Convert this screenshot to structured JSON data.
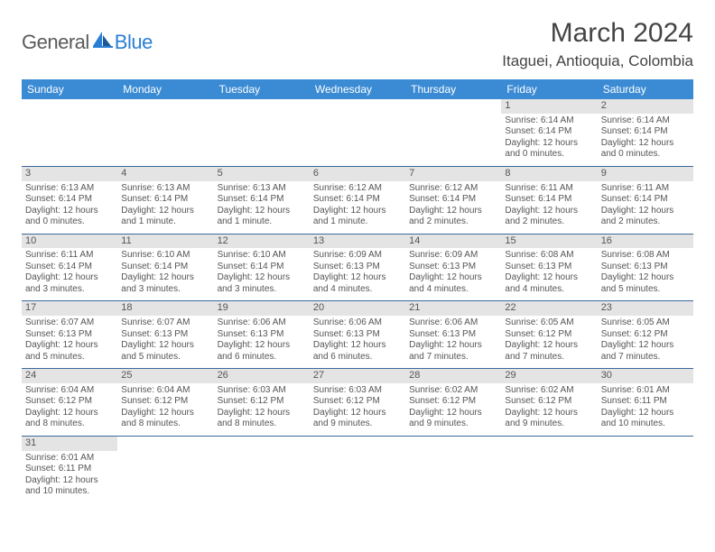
{
  "logo": {
    "part1": "General",
    "part2": "Blue"
  },
  "title": "March 2024",
  "location": "Itaguei, Antioquia, Colombia",
  "headerBg": "#3b8bd4",
  "dayNames": [
    "Sunday",
    "Monday",
    "Tuesday",
    "Wednesday",
    "Thursday",
    "Friday",
    "Saturday"
  ],
  "weeks": [
    [
      null,
      null,
      null,
      null,
      null,
      {
        "n": "1",
        "sr": "6:14 AM",
        "ss": "6:14 PM",
        "dl": "12 hours and 0 minutes."
      },
      {
        "n": "2",
        "sr": "6:14 AM",
        "ss": "6:14 PM",
        "dl": "12 hours and 0 minutes."
      }
    ],
    [
      {
        "n": "3",
        "sr": "6:13 AM",
        "ss": "6:14 PM",
        "dl": "12 hours and 0 minutes."
      },
      {
        "n": "4",
        "sr": "6:13 AM",
        "ss": "6:14 PM",
        "dl": "12 hours and 1 minute."
      },
      {
        "n": "5",
        "sr": "6:13 AM",
        "ss": "6:14 PM",
        "dl": "12 hours and 1 minute."
      },
      {
        "n": "6",
        "sr": "6:12 AM",
        "ss": "6:14 PM",
        "dl": "12 hours and 1 minute."
      },
      {
        "n": "7",
        "sr": "6:12 AM",
        "ss": "6:14 PM",
        "dl": "12 hours and 2 minutes."
      },
      {
        "n": "8",
        "sr": "6:11 AM",
        "ss": "6:14 PM",
        "dl": "12 hours and 2 minutes."
      },
      {
        "n": "9",
        "sr": "6:11 AM",
        "ss": "6:14 PM",
        "dl": "12 hours and 2 minutes."
      }
    ],
    [
      {
        "n": "10",
        "sr": "6:11 AM",
        "ss": "6:14 PM",
        "dl": "12 hours and 3 minutes."
      },
      {
        "n": "11",
        "sr": "6:10 AM",
        "ss": "6:14 PM",
        "dl": "12 hours and 3 minutes."
      },
      {
        "n": "12",
        "sr": "6:10 AM",
        "ss": "6:14 PM",
        "dl": "12 hours and 3 minutes."
      },
      {
        "n": "13",
        "sr": "6:09 AM",
        "ss": "6:13 PM",
        "dl": "12 hours and 4 minutes."
      },
      {
        "n": "14",
        "sr": "6:09 AM",
        "ss": "6:13 PM",
        "dl": "12 hours and 4 minutes."
      },
      {
        "n": "15",
        "sr": "6:08 AM",
        "ss": "6:13 PM",
        "dl": "12 hours and 4 minutes."
      },
      {
        "n": "16",
        "sr": "6:08 AM",
        "ss": "6:13 PM",
        "dl": "12 hours and 5 minutes."
      }
    ],
    [
      {
        "n": "17",
        "sr": "6:07 AM",
        "ss": "6:13 PM",
        "dl": "12 hours and 5 minutes."
      },
      {
        "n": "18",
        "sr": "6:07 AM",
        "ss": "6:13 PM",
        "dl": "12 hours and 5 minutes."
      },
      {
        "n": "19",
        "sr": "6:06 AM",
        "ss": "6:13 PM",
        "dl": "12 hours and 6 minutes."
      },
      {
        "n": "20",
        "sr": "6:06 AM",
        "ss": "6:13 PM",
        "dl": "12 hours and 6 minutes."
      },
      {
        "n": "21",
        "sr": "6:06 AM",
        "ss": "6:13 PM",
        "dl": "12 hours and 7 minutes."
      },
      {
        "n": "22",
        "sr": "6:05 AM",
        "ss": "6:12 PM",
        "dl": "12 hours and 7 minutes."
      },
      {
        "n": "23",
        "sr": "6:05 AM",
        "ss": "6:12 PM",
        "dl": "12 hours and 7 minutes."
      }
    ],
    [
      {
        "n": "24",
        "sr": "6:04 AM",
        "ss": "6:12 PM",
        "dl": "12 hours and 8 minutes."
      },
      {
        "n": "25",
        "sr": "6:04 AM",
        "ss": "6:12 PM",
        "dl": "12 hours and 8 minutes."
      },
      {
        "n": "26",
        "sr": "6:03 AM",
        "ss": "6:12 PM",
        "dl": "12 hours and 8 minutes."
      },
      {
        "n": "27",
        "sr": "6:03 AM",
        "ss": "6:12 PM",
        "dl": "12 hours and 9 minutes."
      },
      {
        "n": "28",
        "sr": "6:02 AM",
        "ss": "6:12 PM",
        "dl": "12 hours and 9 minutes."
      },
      {
        "n": "29",
        "sr": "6:02 AM",
        "ss": "6:12 PM",
        "dl": "12 hours and 9 minutes."
      },
      {
        "n": "30",
        "sr": "6:01 AM",
        "ss": "6:11 PM",
        "dl": "12 hours and 10 minutes."
      }
    ],
    [
      {
        "n": "31",
        "sr": "6:01 AM",
        "ss": "6:11 PM",
        "dl": "12 hours and 10 minutes."
      },
      null,
      null,
      null,
      null,
      null,
      null
    ]
  ],
  "labels": {
    "sunrise": "Sunrise: ",
    "sunset": "Sunset: ",
    "daylight": "Daylight: "
  }
}
